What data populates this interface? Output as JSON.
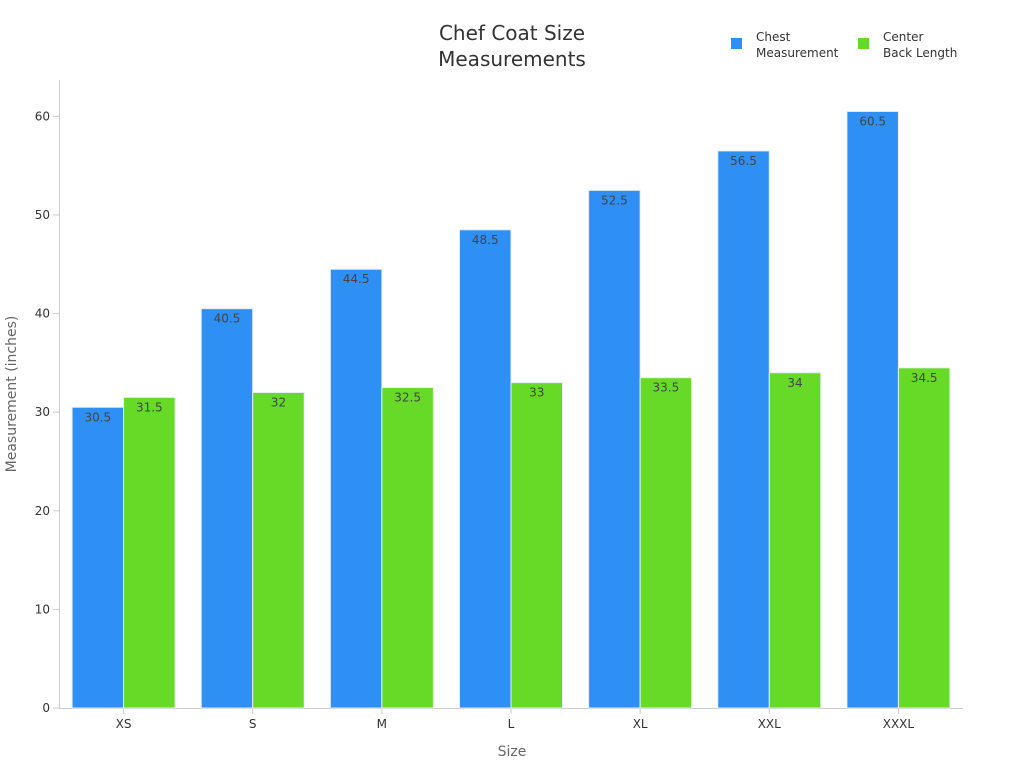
{
  "colors": {
    "chest": "#2e8ff5",
    "back": "#66da26",
    "axis": "#cccccc",
    "bar_stroke": "#e8eef5"
  },
  "chart_data": {
    "type": "bar",
    "title": [
      "Chef Coat Size",
      "Measurements"
    ],
    "xlabel": "Size",
    "ylabel": "Measurement (inches)",
    "categories": [
      "XS",
      "S",
      "M",
      "L",
      "XL",
      "XXL",
      "XXXL"
    ],
    "ylim": [
      0,
      63.5
    ],
    "yticks": [
      0,
      10,
      20,
      30,
      40,
      50,
      60
    ],
    "grid": false,
    "legend_position": "top-right",
    "series": [
      {
        "name": [
          "Chest",
          "Measurement"
        ],
        "color": "#2e8ff5",
        "values": [
          30.5,
          40.5,
          44.5,
          48.5,
          52.5,
          56.5,
          60.5
        ]
      },
      {
        "name": [
          "Center",
          "Back Length"
        ],
        "color": "#66da26",
        "values": [
          31.5,
          32,
          32.5,
          33,
          33.5,
          34,
          34.5
        ]
      }
    ]
  }
}
